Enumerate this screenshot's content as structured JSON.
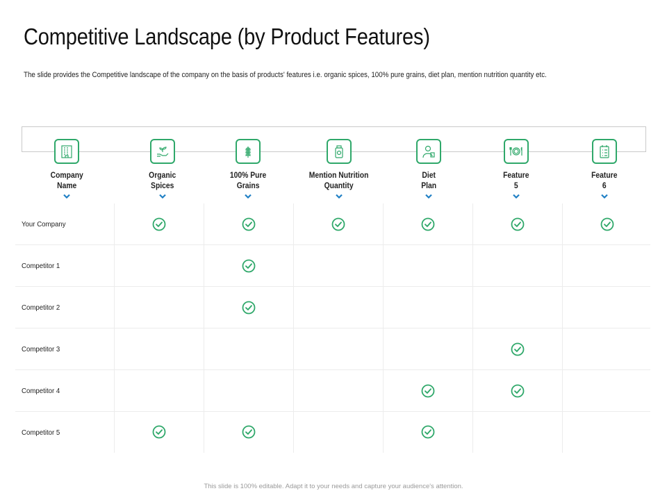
{
  "title": "Competitive Landscape (by Product Features)",
  "subtitle": "The slide provides the Competitive landscape of the company on the basis of products' features i.e. organic spices, 100% pure grains, diet plan, mention nutrition quantity etc.",
  "columns": [
    {
      "label": "Company\nName",
      "icon": "building-icon"
    },
    {
      "label": "Organic\nSpices",
      "icon": "hand-sprout-icon"
    },
    {
      "label": "100% Pure\nGrains",
      "icon": "wheat-icon"
    },
    {
      "label": "Mention Nutrition\nQuantity",
      "icon": "supplement-bottle-icon"
    },
    {
      "label": "Diet\nPlan",
      "icon": "dietitian-icon"
    },
    {
      "label": "Feature\n5",
      "icon": "plate-cutlery-icon"
    },
    {
      "label": "Feature\n6",
      "icon": "checklist-calendar-icon"
    }
  ],
  "rows": [
    {
      "label": "Your Company",
      "checks": [
        true,
        true,
        true,
        true,
        true,
        true
      ]
    },
    {
      "label": "Competitor 1",
      "checks": [
        false,
        true,
        false,
        false,
        false,
        false
      ]
    },
    {
      "label": "Competitor 2",
      "checks": [
        false,
        true,
        false,
        false,
        false,
        false
      ]
    },
    {
      "label": "Competitor 3",
      "checks": [
        false,
        false,
        false,
        false,
        true,
        false
      ]
    },
    {
      "label": "Competitor 4",
      "checks": [
        false,
        false,
        false,
        true,
        true,
        false
      ]
    },
    {
      "label": "Competitor 5",
      "checks": [
        true,
        true,
        false,
        true,
        false,
        false
      ]
    }
  ],
  "colors": {
    "accent": "#2fa86a",
    "chevron": "#1f7fc4",
    "check": "#2fa86a"
  },
  "footer": "This slide is 100% editable. Adapt it to your needs and capture your audience's attention."
}
